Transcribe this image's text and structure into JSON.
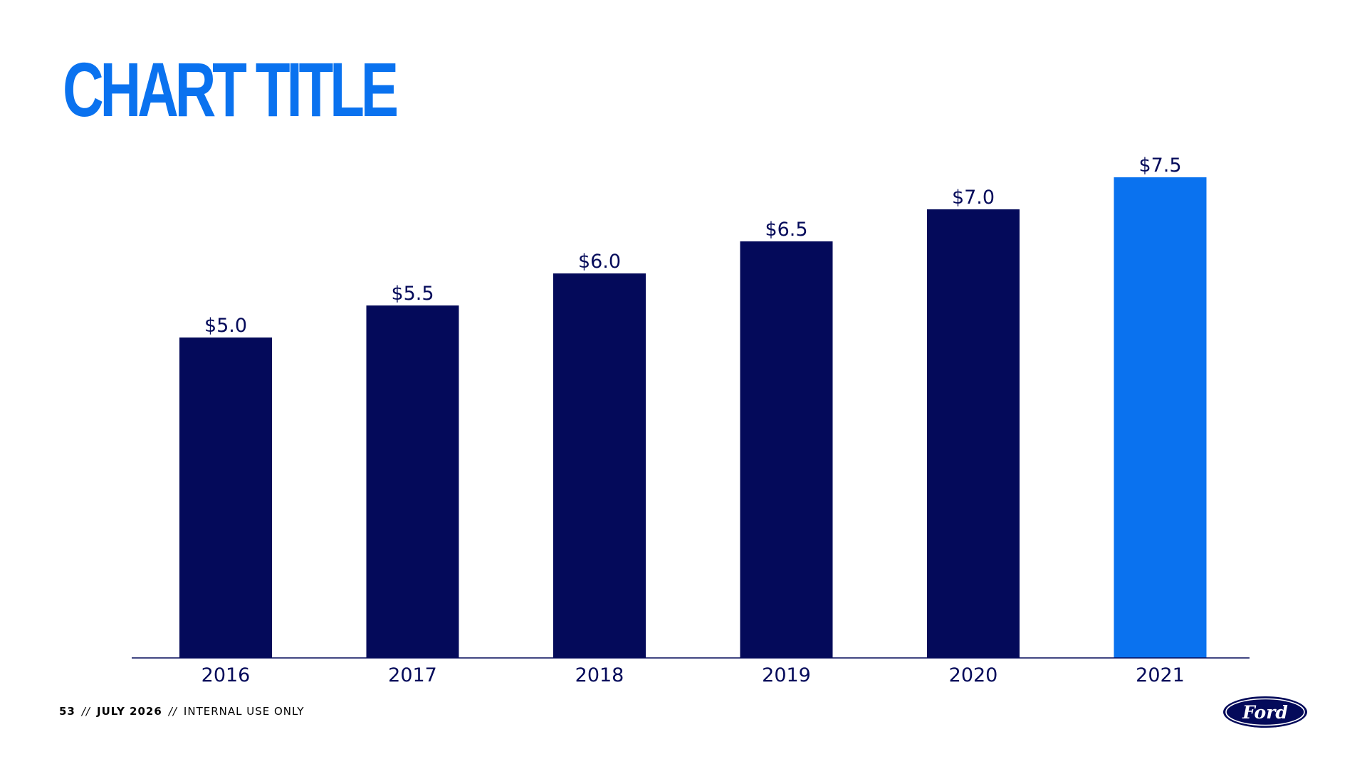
{
  "slide": {
    "title": "CHART TITLE"
  },
  "footer": {
    "page_number": "53",
    "separator": "//",
    "date": "JULY 2026",
    "classification": "INTERNAL USE ONLY"
  },
  "logo": {
    "text": "Ford",
    "icon": "ford-oval-logo-icon"
  },
  "colors": {
    "title": "#0a72ef",
    "bar": "#040a5a",
    "bar_highlight": "#0a72ef",
    "text": "#040a5a"
  },
  "chart_data": {
    "type": "bar",
    "categories": [
      "2016",
      "2017",
      "2018",
      "2019",
      "2020",
      "2021"
    ],
    "values": [
      5.0,
      5.5,
      6.0,
      6.5,
      7.0,
      7.5
    ],
    "data_labels": [
      "$5.0",
      "$5.5",
      "$6.0",
      "$6.5",
      "$7.0",
      "$7.5"
    ],
    "highlight_index": 5,
    "xlabel": "",
    "ylabel": "",
    "ylim": [
      0,
      7.5
    ],
    "grid": false,
    "legend": "none"
  }
}
